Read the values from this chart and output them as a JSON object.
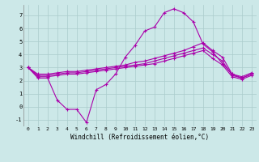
{
  "background_color": "#cce8e8",
  "line_color": "#aa00aa",
  "grid_color": "#aacccc",
  "xlabel": "Windchill (Refroidissement éolien,°C)",
  "xlim": [
    -0.5,
    23.5
  ],
  "ylim": [
    -1.5,
    7.8
  ],
  "yticks": [
    -1,
    0,
    1,
    2,
    3,
    4,
    5,
    6,
    7
  ],
  "xticks": [
    0,
    1,
    2,
    3,
    4,
    5,
    6,
    7,
    8,
    9,
    10,
    11,
    12,
    13,
    14,
    15,
    16,
    17,
    18,
    19,
    20,
    21,
    22,
    23
  ],
  "series": [
    {
      "x": [
        0,
        1,
        2,
        3,
        4,
        5,
        6,
        7,
        8,
        9,
        10,
        11,
        12,
        13,
        14,
        15,
        16,
        17,
        18,
        19,
        20,
        21,
        22,
        23
      ],
      "y": [
        3.0,
        2.2,
        2.2,
        0.5,
        -0.2,
        -0.2,
        -1.2,
        1.3,
        1.7,
        2.5,
        3.8,
        4.7,
        5.8,
        6.1,
        7.2,
        7.5,
        7.2,
        6.5,
        4.8,
        4.2,
        3.3,
        2.5,
        2.2,
        2.5
      ]
    },
    {
      "x": [
        0,
        1,
        2,
        3,
        4,
        5,
        6,
        7,
        8,
        9,
        10,
        11,
        12,
        13,
        14,
        15,
        16,
        17,
        18,
        19,
        20,
        21,
        22,
        23
      ],
      "y": [
        3.0,
        2.5,
        2.5,
        2.6,
        2.7,
        2.7,
        2.8,
        2.9,
        3.0,
        3.1,
        3.2,
        3.4,
        3.5,
        3.7,
        3.9,
        4.1,
        4.3,
        4.6,
        4.9,
        4.3,
        3.8,
        2.5,
        2.3,
        2.6
      ]
    },
    {
      "x": [
        0,
        1,
        2,
        3,
        4,
        5,
        6,
        7,
        8,
        9,
        10,
        11,
        12,
        13,
        14,
        15,
        16,
        17,
        18,
        19,
        20,
        21,
        22,
        23
      ],
      "y": [
        3.0,
        2.4,
        2.4,
        2.5,
        2.6,
        2.6,
        2.7,
        2.8,
        2.9,
        3.0,
        3.1,
        3.2,
        3.3,
        3.5,
        3.7,
        3.9,
        4.1,
        4.3,
        4.5,
        4.0,
        3.5,
        2.4,
        2.2,
        2.5
      ]
    },
    {
      "x": [
        0,
        1,
        2,
        3,
        4,
        5,
        6,
        7,
        8,
        9,
        10,
        11,
        12,
        13,
        14,
        15,
        16,
        17,
        18,
        19,
        20,
        21,
        22,
        23
      ],
      "y": [
        3.0,
        2.3,
        2.3,
        2.4,
        2.5,
        2.5,
        2.6,
        2.7,
        2.8,
        2.9,
        3.0,
        3.1,
        3.2,
        3.3,
        3.5,
        3.7,
        3.9,
        4.1,
        4.3,
        3.7,
        3.2,
        2.3,
        2.1,
        2.4
      ]
    }
  ]
}
